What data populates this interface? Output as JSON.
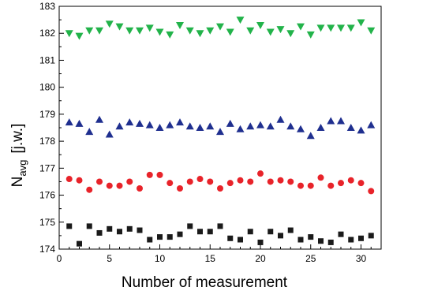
{
  "chart_data": {
    "type": "scatter",
    "title": "",
    "xlabel": "Number of measurement",
    "ylabel_main": "N",
    "ylabel_sub": "avg",
    "ylabel_unit": "[j.w.]",
    "xlim": [
      0,
      32
    ],
    "ylim": [
      174,
      183
    ],
    "x_ticks": [
      0,
      5,
      10,
      15,
      20,
      25,
      30
    ],
    "y_ticks": [
      174,
      175,
      176,
      177,
      178,
      179,
      180,
      181,
      182,
      183
    ],
    "grid": false,
    "x": [
      1,
      2,
      3,
      4,
      5,
      6,
      7,
      8,
      9,
      10,
      11,
      12,
      13,
      14,
      15,
      16,
      17,
      18,
      19,
      20,
      21,
      22,
      23,
      24,
      25,
      26,
      27,
      28,
      29,
      30,
      31
    ],
    "series": [
      {
        "marker": "triangle-down",
        "color": "#22b34a",
        "values": [
          182.0,
          181.9,
          182.1,
          182.1,
          182.35,
          182.25,
          182.1,
          182.1,
          182.2,
          182.05,
          181.95,
          182.3,
          182.1,
          182.0,
          182.1,
          182.25,
          182.05,
          182.5,
          182.1,
          182.3,
          182.05,
          182.15,
          182.0,
          182.25,
          181.95,
          182.2,
          182.2,
          182.2,
          182.2,
          182.4,
          182.1
        ]
      },
      {
        "marker": "triangle-up",
        "color": "#1f2f8f",
        "values": [
          178.7,
          178.65,
          178.35,
          178.8,
          178.25,
          178.55,
          178.7,
          178.65,
          178.6,
          178.5,
          178.6,
          178.7,
          178.55,
          178.5,
          178.55,
          178.35,
          178.65,
          178.45,
          178.55,
          178.6,
          178.55,
          178.8,
          178.55,
          178.45,
          178.2,
          178.5,
          178.75,
          178.75,
          178.5,
          178.4,
          178.6
        ]
      },
      {
        "marker": "circle",
        "color": "#e8232a",
        "values": [
          176.6,
          176.55,
          176.2,
          176.5,
          176.35,
          176.35,
          176.5,
          176.25,
          176.75,
          176.75,
          176.45,
          176.25,
          176.5,
          176.6,
          176.5,
          176.25,
          176.45,
          176.55,
          176.5,
          176.8,
          176.5,
          176.55,
          176.5,
          176.35,
          176.35,
          176.65,
          176.35,
          176.45,
          176.55,
          176.45,
          176.15
        ]
      },
      {
        "marker": "square",
        "color": "#1a1a1a",
        "values": [
          174.85,
          174.2,
          174.85,
          174.6,
          174.75,
          174.65,
          174.75,
          174.7,
          174.35,
          174.45,
          174.45,
          174.55,
          174.85,
          174.65,
          174.65,
          174.85,
          174.4,
          174.35,
          174.65,
          174.25,
          174.65,
          174.5,
          174.7,
          174.35,
          174.45,
          174.3,
          174.25,
          174.55,
          174.35,
          174.4,
          174.5
        ]
      }
    ]
  }
}
